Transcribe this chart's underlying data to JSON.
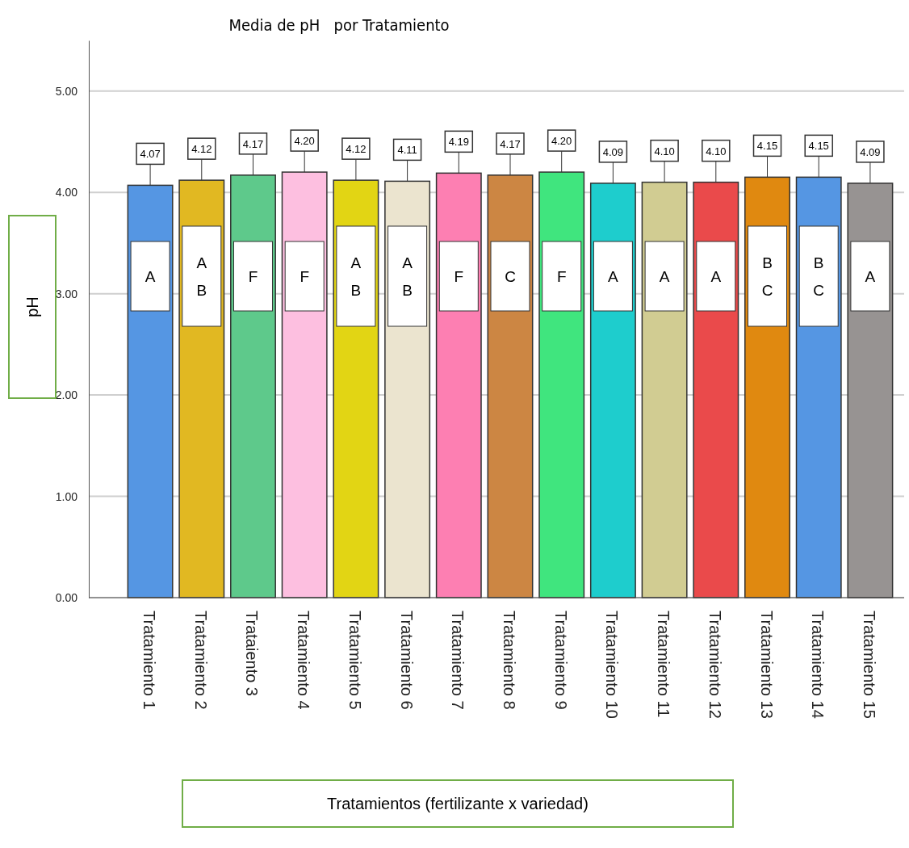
{
  "chart_data": {
    "type": "bar",
    "title": "Media de pH   por Tratamiento",
    "xlabel": "Tratamientos (fertilizante x variedad)",
    "ylabel": "pH",
    "categories": [
      "Tratamiento 1",
      "Tratamiento 2",
      "Trataiento 3",
      "Tratamiento 4",
      "Tratamiento 5",
      "Tratamiento 6",
      "Tratamiento 7",
      "Tratamiento 8",
      "Tratamiento 9",
      "Tratamiento 10",
      "Tratamiento 11",
      "Tratamiento 12",
      "Tratamiento 13",
      "Tratamiento 14",
      "Tratamiento 15"
    ],
    "values": [
      4.07,
      4.12,
      4.17,
      4.2,
      4.12,
      4.11,
      4.19,
      4.17,
      4.2,
      4.09,
      4.1,
      4.1,
      4.15,
      4.15,
      4.09
    ],
    "colors": [
      "#5596e3",
      "#e1b822",
      "#5ec98b",
      "#fdbfe0",
      "#e2d514",
      "#ebe4cf",
      "#fd7fb2",
      "#cc8643",
      "#40e57e",
      "#1ecdcd",
      "#d1cc92",
      "#ea4a4b",
      "#e08910",
      "#5596e3",
      "#979392"
    ],
    "ylim": [
      0,
      5.5
    ],
    "yticks": [
      {
        "value": 0,
        "label": "0.00"
      },
      {
        "value": 1,
        "label": "1.00"
      },
      {
        "value": 2,
        "label": "2.00"
      },
      {
        "value": 3,
        "label": "3.00"
      },
      {
        "value": 4,
        "label": "4.00"
      },
      {
        "value": 5,
        "label": "5.00"
      }
    ],
    "grid": "y",
    "value_labels": [
      "4.07",
      "4.12",
      "4.17",
      "4.20",
      "4.12",
      "4.11",
      "4.19",
      "4.17",
      "4.20",
      "4.09",
      "4.10",
      "4.10",
      "4.15",
      "4.15",
      "4.09"
    ],
    "annotations": [
      "A",
      "A\nB",
      "F",
      "F",
      "A\nB",
      "A\nB",
      "F",
      "C",
      "F",
      "A",
      "A",
      "A",
      "B\nC",
      "B\nC",
      "A"
    ]
  }
}
